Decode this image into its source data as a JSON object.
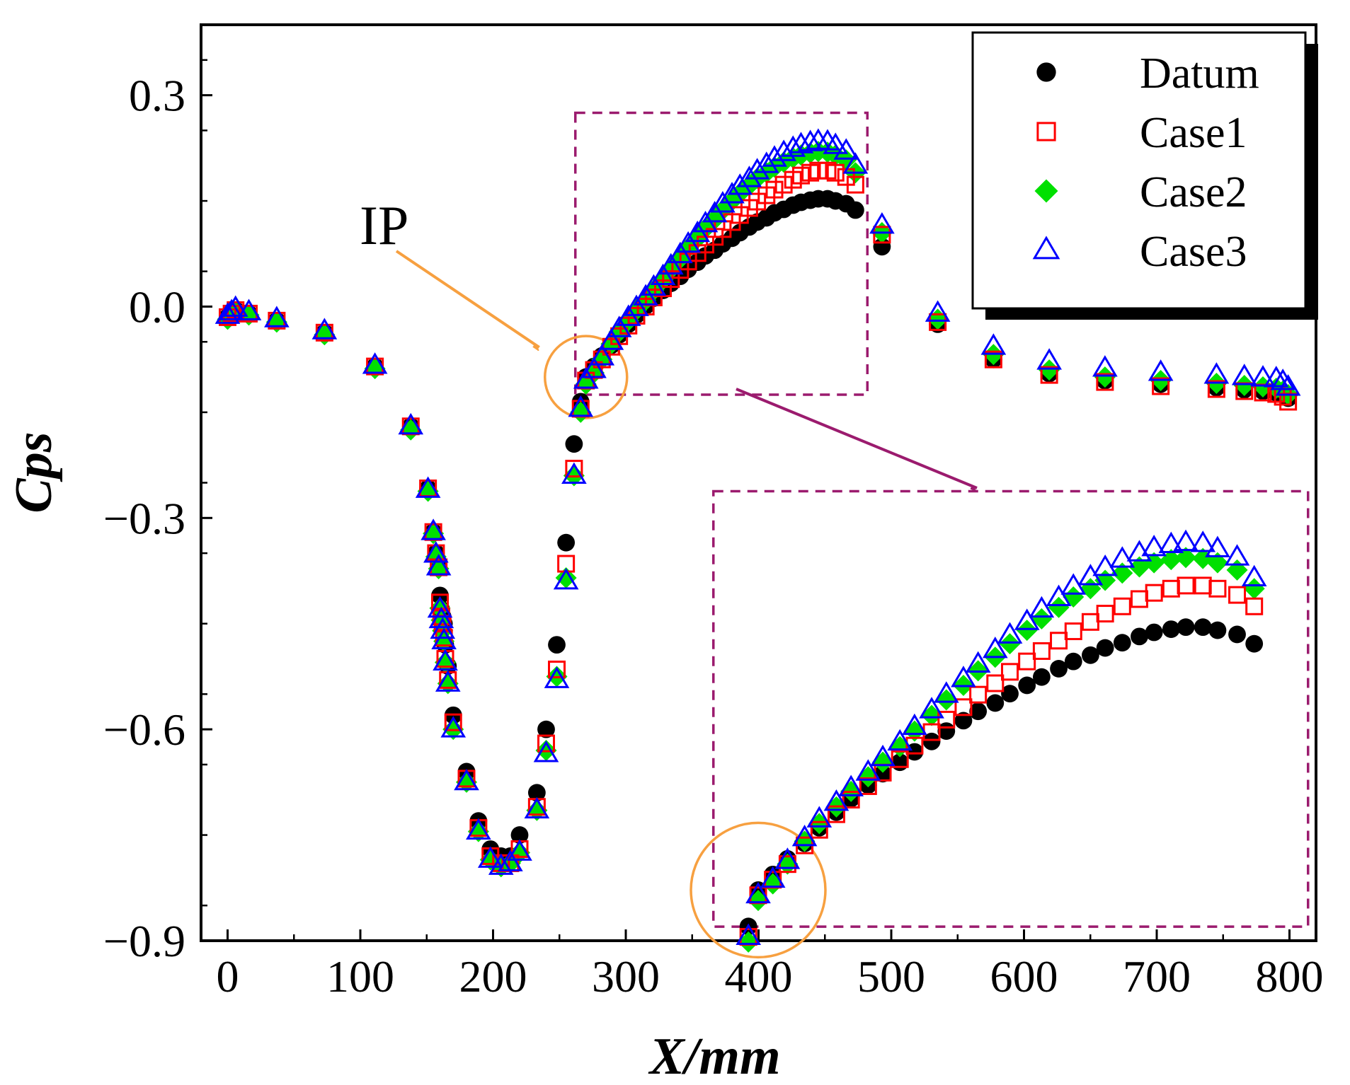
{
  "colors": {
    "datum": "#000000",
    "case1": "#ff0000",
    "case2": "#00e000",
    "case3": "#0000ff",
    "zoom_box": "#9b1b6e",
    "ip_marker": "#f7a040"
  },
  "chart_data": {
    "type": "scatter",
    "title": "",
    "xlabel": "X/mm",
    "ylabel": "Cps",
    "xlim": [
      -20,
      820
    ],
    "ylim": [
      -0.9,
      0.4
    ],
    "xticks": [
      0,
      100,
      200,
      300,
      400,
      500,
      600,
      700,
      800
    ],
    "yticks": [
      0.3,
      0.0,
      -0.3,
      -0.6,
      -0.9
    ],
    "xtick_labels": [
      "0",
      "100",
      "200",
      "300",
      "400",
      "500",
      "600",
      "700",
      "800"
    ],
    "ytick_labels": [
      "0.3",
      "0.0",
      "−0.3",
      "−0.6",
      "−0.9"
    ],
    "legend": {
      "position": "top-right",
      "entries": [
        "Datum",
        "Case1",
        "Case2",
        "Case3"
      ]
    },
    "annotations": [
      {
        "text": "IP",
        "target_x": 270,
        "target_y": -0.1
      }
    ],
    "inset": {
      "source_xlim": [
        262,
        482
      ],
      "source_ylim": [
        -0.125,
        0.275
      ],
      "shown_xlim": [
        385,
        790
      ],
      "shown_ylim": [
        -0.865,
        -0.275
      ]
    },
    "series": [
      {
        "name": "Datum",
        "marker": "circle-filled",
        "points": [
          [
            0,
            -0.015
          ],
          [
            3,
            -0.01
          ],
          [
            6,
            -0.005
          ],
          [
            16,
            -0.01
          ],
          [
            37,
            -0.02
          ],
          [
            73,
            -0.037
          ],
          [
            111,
            -0.085
          ],
          [
            138,
            -0.17
          ],
          [
            151,
            -0.258
          ],
          [
            155,
            -0.32
          ],
          [
            157,
            -0.35
          ],
          [
            159,
            -0.37
          ],
          [
            160,
            -0.41
          ],
          [
            161,
            -0.43
          ],
          [
            162,
            -0.44
          ],
          [
            163,
            -0.45
          ],
          [
            164,
            -0.48
          ],
          [
            166,
            -0.51
          ],
          [
            170,
            -0.58
          ],
          [
            180,
            -0.66
          ],
          [
            189,
            -0.73
          ],
          [
            198,
            -0.77
          ],
          [
            206,
            -0.78
          ],
          [
            213,
            -0.78
          ],
          [
            220,
            -0.75
          ],
          [
            233,
            -0.69
          ],
          [
            240,
            -0.6
          ],
          [
            248,
            -0.48
          ],
          [
            255,
            -0.335
          ],
          [
            261,
            -0.195
          ],
          [
            266,
            -0.135
          ],
          [
            270,
            -0.1
          ],
          [
            276,
            -0.085
          ],
          [
            282,
            -0.07
          ],
          [
            289,
            -0.055
          ],
          [
            295,
            -0.04
          ],
          [
            302,
            -0.025
          ],
          [
            308,
            -0.012
          ],
          [
            315,
            0.001
          ],
          [
            321,
            0.012
          ],
          [
            328,
            0.023
          ],
          [
            334,
            0.033
          ],
          [
            341,
            0.043
          ],
          [
            347,
            0.053
          ],
          [
            354,
            0.063
          ],
          [
            360,
            0.072
          ],
          [
            367,
            0.08
          ],
          [
            373,
            0.089
          ],
          [
            380,
            0.097
          ],
          [
            386,
            0.105
          ],
          [
            393,
            0.113
          ],
          [
            399,
            0.12
          ],
          [
            406,
            0.126
          ],
          [
            412,
            0.133
          ],
          [
            419,
            0.138
          ],
          [
            426,
            0.144
          ],
          [
            432,
            0.148
          ],
          [
            439,
            0.151
          ],
          [
            445,
            0.153
          ],
          [
            452,
            0.153
          ],
          [
            458,
            0.15
          ],
          [
            466,
            0.146
          ],
          [
            473,
            0.137
          ],
          [
            493,
            0.085
          ],
          [
            535,
            -0.025
          ],
          [
            577,
            -0.075
          ],
          [
            619,
            -0.095
          ],
          [
            661,
            -0.105
          ],
          [
            703,
            -0.11
          ],
          [
            745,
            -0.115
          ],
          [
            766,
            -0.118
          ],
          [
            780,
            -0.12
          ],
          [
            790,
            -0.122
          ],
          [
            795,
            -0.125
          ],
          [
            799,
            -0.13
          ]
        ]
      },
      {
        "name": "Case1",
        "marker": "square-open",
        "points": [
          [
            0,
            -0.015
          ],
          [
            3,
            -0.01
          ],
          [
            6,
            -0.005
          ],
          [
            16,
            -0.01
          ],
          [
            37,
            -0.02
          ],
          [
            73,
            -0.037
          ],
          [
            111,
            -0.085
          ],
          [
            138,
            -0.17
          ],
          [
            151,
            -0.258
          ],
          [
            155,
            -0.32
          ],
          [
            157,
            -0.35
          ],
          [
            159,
            -0.37
          ],
          [
            160,
            -0.42
          ],
          [
            161,
            -0.44
          ],
          [
            162,
            -0.45
          ],
          [
            163,
            -0.47
          ],
          [
            164,
            -0.5
          ],
          [
            166,
            -0.53
          ],
          [
            170,
            -0.59
          ],
          [
            180,
            -0.67
          ],
          [
            189,
            -0.74
          ],
          [
            198,
            -0.78
          ],
          [
            206,
            -0.79
          ],
          [
            213,
            -0.79
          ],
          [
            220,
            -0.77
          ],
          [
            233,
            -0.71
          ],
          [
            240,
            -0.62
          ],
          [
            248,
            -0.515
          ],
          [
            255,
            -0.365
          ],
          [
            261,
            -0.23
          ],
          [
            266,
            -0.145
          ],
          [
            270,
            -0.105
          ],
          [
            276,
            -0.09
          ],
          [
            282,
            -0.075
          ],
          [
            289,
            -0.057
          ],
          [
            295,
            -0.042
          ],
          [
            302,
            -0.027
          ],
          [
            308,
            -0.013
          ],
          [
            315,
            0.0
          ],
          [
            321,
            0.013
          ],
          [
            328,
            0.026
          ],
          [
            334,
            0.039
          ],
          [
            341,
            0.052
          ],
          [
            347,
            0.064
          ],
          [
            354,
            0.076
          ],
          [
            360,
            0.088
          ],
          [
            367,
            0.099
          ],
          [
            373,
            0.11
          ],
          [
            380,
            0.12
          ],
          [
            386,
            0.13
          ],
          [
            393,
            0.14
          ],
          [
            399,
            0.149
          ],
          [
            406,
            0.158
          ],
          [
            412,
            0.166
          ],
          [
            419,
            0.173
          ],
          [
            426,
            0.18
          ],
          [
            432,
            0.186
          ],
          [
            439,
            0.19
          ],
          [
            445,
            0.193
          ],
          [
            452,
            0.193
          ],
          [
            458,
            0.19
          ],
          [
            466,
            0.184
          ],
          [
            473,
            0.173
          ],
          [
            493,
            0.102
          ],
          [
            535,
            -0.022
          ],
          [
            577,
            -0.075
          ],
          [
            619,
            -0.097
          ],
          [
            661,
            -0.107
          ],
          [
            703,
            -0.113
          ],
          [
            745,
            -0.117
          ],
          [
            766,
            -0.12
          ],
          [
            780,
            -0.122
          ],
          [
            790,
            -0.124
          ],
          [
            795,
            -0.128
          ],
          [
            799,
            -0.135
          ]
        ]
      },
      {
        "name": "Case2",
        "marker": "diamond-filled",
        "points": [
          [
            0,
            -0.018
          ],
          [
            3,
            -0.013
          ],
          [
            6,
            -0.008
          ],
          [
            16,
            -0.012
          ],
          [
            37,
            -0.022
          ],
          [
            73,
            -0.04
          ],
          [
            111,
            -0.088
          ],
          [
            138,
            -0.175
          ],
          [
            151,
            -0.262
          ],
          [
            155,
            -0.322
          ],
          [
            157,
            -0.355
          ],
          [
            159,
            -0.372
          ],
          [
            160,
            -0.428
          ],
          [
            161,
            -0.445
          ],
          [
            162,
            -0.46
          ],
          [
            163,
            -0.475
          ],
          [
            164,
            -0.505
          ],
          [
            166,
            -0.535
          ],
          [
            170,
            -0.6
          ],
          [
            180,
            -0.675
          ],
          [
            189,
            -0.745
          ],
          [
            198,
            -0.785
          ],
          [
            206,
            -0.795
          ],
          [
            213,
            -0.79
          ],
          [
            220,
            -0.775
          ],
          [
            233,
            -0.715
          ],
          [
            240,
            -0.63
          ],
          [
            248,
            -0.525
          ],
          [
            255,
            -0.385
          ],
          [
            261,
            -0.24
          ],
          [
            266,
            -0.15
          ],
          [
            270,
            -0.11
          ],
          [
            276,
            -0.094
          ],
          [
            282,
            -0.075
          ],
          [
            289,
            -0.053
          ],
          [
            295,
            -0.036
          ],
          [
            302,
            -0.02
          ],
          [
            308,
            -0.005
          ],
          [
            315,
            0.009
          ],
          [
            321,
            0.023
          ],
          [
            328,
            0.038
          ],
          [
            334,
            0.053
          ],
          [
            341,
            0.068
          ],
          [
            347,
            0.083
          ],
          [
            354,
            0.097
          ],
          [
            360,
            0.111
          ],
          [
            367,
            0.124
          ],
          [
            373,
            0.137
          ],
          [
            380,
            0.15
          ],
          [
            386,
            0.161
          ],
          [
            393,
            0.172
          ],
          [
            399,
            0.182
          ],
          [
            406,
            0.19
          ],
          [
            412,
            0.198
          ],
          [
            419,
            0.205
          ],
          [
            426,
            0.211
          ],
          [
            432,
            0.215
          ],
          [
            439,
            0.218
          ],
          [
            445,
            0.22
          ],
          [
            452,
            0.219
          ],
          [
            458,
            0.215
          ],
          [
            466,
            0.208
          ],
          [
            473,
            0.19
          ],
          [
            493,
            0.105
          ],
          [
            535,
            -0.018
          ],
          [
            577,
            -0.068
          ],
          [
            619,
            -0.09
          ],
          [
            661,
            -0.1
          ],
          [
            703,
            -0.105
          ],
          [
            745,
            -0.109
          ],
          [
            766,
            -0.112
          ],
          [
            780,
            -0.114
          ],
          [
            790,
            -0.116
          ],
          [
            795,
            -0.12
          ],
          [
            799,
            -0.125
          ]
        ]
      },
      {
        "name": "Case3",
        "marker": "triangle-open",
        "points": [
          [
            0,
            -0.013
          ],
          [
            3,
            -0.008
          ],
          [
            6,
            -0.003
          ],
          [
            16,
            -0.008
          ],
          [
            37,
            -0.018
          ],
          [
            73,
            -0.035
          ],
          [
            111,
            -0.084
          ],
          [
            138,
            -0.17
          ],
          [
            151,
            -0.26
          ],
          [
            155,
            -0.32
          ],
          [
            157,
            -0.352
          ],
          [
            159,
            -0.37
          ],
          [
            160,
            -0.43
          ],
          [
            161,
            -0.445
          ],
          [
            162,
            -0.46
          ],
          [
            163,
            -0.475
          ],
          [
            164,
            -0.505
          ],
          [
            166,
            -0.535
          ],
          [
            170,
            -0.6
          ],
          [
            180,
            -0.675
          ],
          [
            189,
            -0.745
          ],
          [
            198,
            -0.785
          ],
          [
            206,
            -0.795
          ],
          [
            213,
            -0.79
          ],
          [
            220,
            -0.775
          ],
          [
            233,
            -0.715
          ],
          [
            240,
            -0.635
          ],
          [
            248,
            -0.53
          ],
          [
            255,
            -0.39
          ],
          [
            261,
            -0.24
          ],
          [
            266,
            -0.145
          ],
          [
            270,
            -0.105
          ],
          [
            276,
            -0.09
          ],
          [
            282,
            -0.072
          ],
          [
            289,
            -0.05
          ],
          [
            295,
            -0.032
          ],
          [
            302,
            -0.016
          ],
          [
            308,
            -0.002
          ],
          [
            315,
            0.013
          ],
          [
            321,
            0.027
          ],
          [
            328,
            0.042
          ],
          [
            334,
            0.057
          ],
          [
            341,
            0.073
          ],
          [
            347,
            0.088
          ],
          [
            354,
            0.103
          ],
          [
            360,
            0.117
          ],
          [
            367,
            0.131
          ],
          [
            373,
            0.145
          ],
          [
            380,
            0.158
          ],
          [
            386,
            0.17
          ],
          [
            393,
            0.181
          ],
          [
            399,
            0.192
          ],
          [
            406,
            0.201
          ],
          [
            412,
            0.21
          ],
          [
            419,
            0.218
          ],
          [
            426,
            0.224
          ],
          [
            432,
            0.229
          ],
          [
            439,
            0.232
          ],
          [
            445,
            0.234
          ],
          [
            452,
            0.233
          ],
          [
            458,
            0.228
          ],
          [
            466,
            0.22
          ],
          [
            473,
            0.2
          ],
          [
            493,
            0.115
          ],
          [
            535,
            -0.01
          ],
          [
            577,
            -0.057
          ],
          [
            619,
            -0.078
          ],
          [
            661,
            -0.088
          ],
          [
            703,
            -0.094
          ],
          [
            745,
            -0.098
          ],
          [
            766,
            -0.1
          ],
          [
            780,
            -0.102
          ],
          [
            790,
            -0.103
          ],
          [
            795,
            -0.107
          ],
          [
            799,
            -0.115
          ]
        ]
      }
    ]
  }
}
